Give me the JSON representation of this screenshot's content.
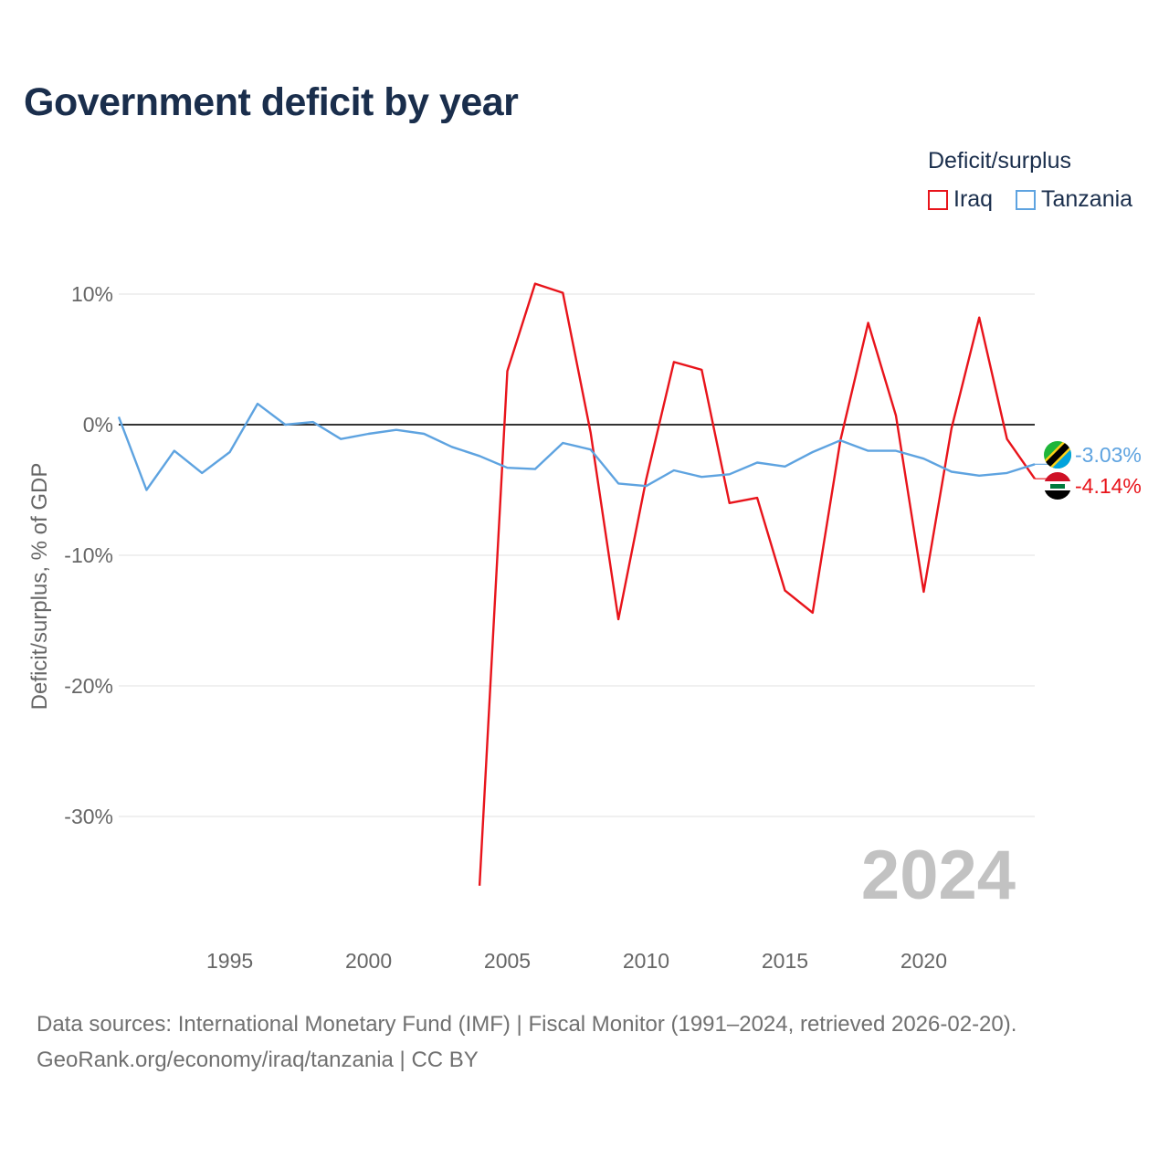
{
  "title": "Government deficit by year",
  "legend": {
    "title": "Deficit/surplus",
    "items": [
      {
        "label": "Iraq",
        "color": "#e8141b"
      },
      {
        "label": "Tanzania",
        "color": "#5ea3e0"
      }
    ]
  },
  "source": {
    "line1": "Data sources: International Monetary Fund (IMF) | Fiscal Monitor (1991–2024, retrieved 2026-02-20).",
    "line2": "GeoRank.org/economy/iraq/tanzania | CC BY"
  },
  "chart_data": {
    "type": "line",
    "title": "Government deficit by year",
    "xlabel": "",
    "ylabel": "Deficit/surplus, % of GDP",
    "xlim": [
      1991,
      2024
    ],
    "ylim": [
      -38,
      12
    ],
    "x_ticks": [
      1995,
      2000,
      2005,
      2010,
      2015,
      2020
    ],
    "y_ticks": [
      10,
      0,
      -10,
      -20,
      -30
    ],
    "y_tick_labels": [
      "10%",
      "0%",
      "-10%",
      "-20%",
      "-30%"
    ],
    "grid": true,
    "watermark_year": "2024",
    "series": [
      {
        "name": "Iraq",
        "color": "#e8141b",
        "end_label": "-4.14%",
        "x": [
          2004,
          2005,
          2006,
          2007,
          2008,
          2009,
          2010,
          2011,
          2012,
          2013,
          2014,
          2015,
          2016,
          2017,
          2018,
          2019,
          2020,
          2021,
          2022,
          2023,
          2024
        ],
        "values": [
          -35.3,
          4.1,
          10.8,
          10.1,
          -0.6,
          -14.9,
          -4.2,
          4.8,
          4.2,
          -6.0,
          -5.6,
          -12.7,
          -14.4,
          -1.2,
          7.8,
          0.7,
          -12.8,
          -0.3,
          8.2,
          -1.1,
          -4.14
        ]
      },
      {
        "name": "Tanzania",
        "color": "#5ea3e0",
        "end_label": "-3.03%",
        "x": [
          1991,
          1992,
          1993,
          1994,
          1995,
          1996,
          1997,
          1998,
          1999,
          2000,
          2001,
          2002,
          2003,
          2004,
          2005,
          2006,
          2007,
          2008,
          2009,
          2010,
          2011,
          2012,
          2013,
          2014,
          2015,
          2016,
          2017,
          2018,
          2019,
          2020,
          2021,
          2022,
          2023,
          2024
        ],
        "values": [
          0.6,
          -5.0,
          -2.0,
          -3.7,
          -2.1,
          1.6,
          0.0,
          0.2,
          -1.1,
          -0.7,
          -0.4,
          -0.7,
          -1.7,
          -2.4,
          -3.3,
          -3.4,
          -1.4,
          -1.9,
          -4.5,
          -4.7,
          -3.5,
          -4.0,
          -3.8,
          -2.9,
          -3.2,
          -2.1,
          -1.2,
          -2.0,
          -2.0,
          -2.6,
          -3.6,
          -3.9,
          -3.7,
          -3.03
        ]
      }
    ]
  }
}
